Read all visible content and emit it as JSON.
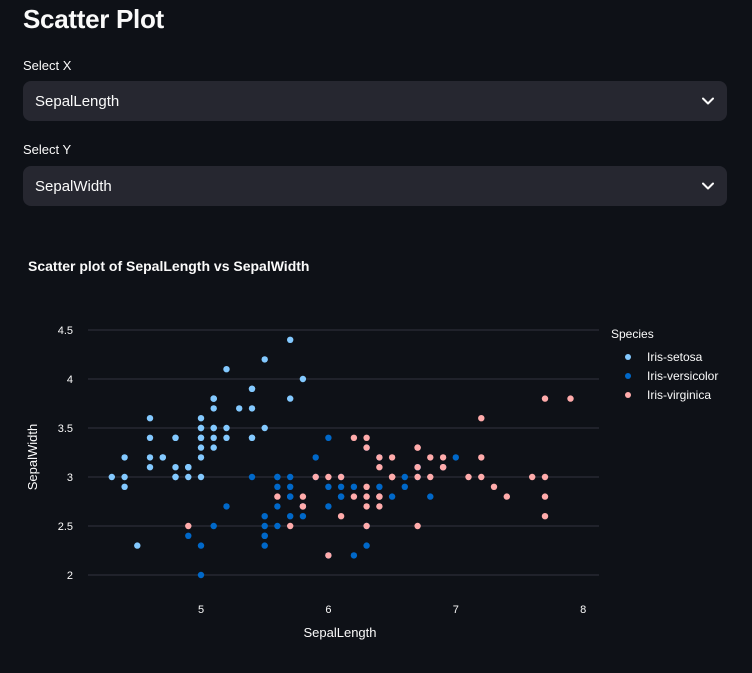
{
  "page": {
    "title": "Scatter Plot"
  },
  "select_x": {
    "label": "Select X",
    "value": "SepalLength"
  },
  "select_y": {
    "label": "Select Y",
    "value": "SepalWidth"
  },
  "icons": {
    "dropdown": "chevron-down-icon"
  },
  "colors": {
    "setosa": "#83c9ff",
    "versicolor": "#0068c9",
    "virginica": "#ffabab",
    "background": "#0e1117"
  },
  "chart_data": {
    "type": "scatter",
    "title": "Scatter plot of SepalLength vs  SepalWidth",
    "xlabel": "SepalLength",
    "ylabel": "SepalWidth",
    "xlim": [
      4.0,
      8.1
    ],
    "ylim": [
      1.8,
      4.6
    ],
    "xticks": [
      "5",
      "6",
      "7",
      "8"
    ],
    "yticks": [
      "2",
      "2.5",
      "3",
      "3.5",
      "4",
      "4.5"
    ],
    "grid": true,
    "legend": {
      "title": "Species",
      "placement": "right"
    },
    "series": [
      {
        "name": "Iris-setosa",
        "color": "#83c9ff",
        "points": [
          [
            5.1,
            3.5
          ],
          [
            4.9,
            3.0
          ],
          [
            4.7,
            3.2
          ],
          [
            4.6,
            3.1
          ],
          [
            5.0,
            3.6
          ],
          [
            5.4,
            3.9
          ],
          [
            4.6,
            3.4
          ],
          [
            5.0,
            3.4
          ],
          [
            4.4,
            2.9
          ],
          [
            4.9,
            3.1
          ],
          [
            5.4,
            3.7
          ],
          [
            4.8,
            3.4
          ],
          [
            4.8,
            3.0
          ],
          [
            4.3,
            3.0
          ],
          [
            5.8,
            4.0
          ],
          [
            5.7,
            4.4
          ],
          [
            5.4,
            3.9
          ],
          [
            5.1,
            3.5
          ],
          [
            5.7,
            3.8
          ],
          [
            5.1,
            3.8
          ],
          [
            5.4,
            3.4
          ],
          [
            5.1,
            3.7
          ],
          [
            4.6,
            3.6
          ],
          [
            5.1,
            3.3
          ],
          [
            4.8,
            3.4
          ],
          [
            5.0,
            3.0
          ],
          [
            5.0,
            3.4
          ],
          [
            5.2,
            3.5
          ],
          [
            5.2,
            3.4
          ],
          [
            4.7,
            3.2
          ],
          [
            4.8,
            3.1
          ],
          [
            5.4,
            3.4
          ],
          [
            5.2,
            4.1
          ],
          [
            5.5,
            4.2
          ],
          [
            4.9,
            3.1
          ],
          [
            5.0,
            3.2
          ],
          [
            5.5,
            3.5
          ],
          [
            4.9,
            3.1
          ],
          [
            4.4,
            3.0
          ],
          [
            5.1,
            3.4
          ],
          [
            5.0,
            3.5
          ],
          [
            4.5,
            2.3
          ],
          [
            4.4,
            3.2
          ],
          [
            5.0,
            3.5
          ],
          [
            5.1,
            3.8
          ],
          [
            4.8,
            3.0
          ],
          [
            5.1,
            3.8
          ],
          [
            4.6,
            3.2
          ],
          [
            5.3,
            3.7
          ],
          [
            5.0,
            3.3
          ]
        ]
      },
      {
        "name": "Iris-versicolor",
        "color": "#0068c9",
        "points": [
          [
            7.0,
            3.2
          ],
          [
            6.4,
            3.2
          ],
          [
            6.9,
            3.1
          ],
          [
            5.5,
            2.3
          ],
          [
            6.5,
            2.8
          ],
          [
            5.7,
            2.8
          ],
          [
            6.3,
            3.3
          ],
          [
            4.9,
            2.4
          ],
          [
            6.6,
            2.9
          ],
          [
            5.2,
            2.7
          ],
          [
            5.0,
            2.0
          ],
          [
            5.9,
            3.0
          ],
          [
            6.0,
            2.2
          ],
          [
            6.1,
            2.9
          ],
          [
            5.6,
            2.9
          ],
          [
            6.7,
            3.1
          ],
          [
            5.6,
            3.0
          ],
          [
            5.8,
            2.7
          ],
          [
            6.2,
            2.2
          ],
          [
            5.6,
            2.5
          ],
          [
            5.9,
            3.2
          ],
          [
            6.1,
            2.8
          ],
          [
            6.3,
            2.5
          ],
          [
            6.1,
            2.8
          ],
          [
            6.4,
            2.9
          ],
          [
            6.6,
            3.0
          ],
          [
            6.8,
            2.8
          ],
          [
            6.7,
            3.0
          ],
          [
            6.0,
            2.9
          ],
          [
            5.7,
            2.6
          ],
          [
            5.5,
            2.4
          ],
          [
            5.5,
            2.4
          ],
          [
            5.8,
            2.7
          ],
          [
            6.0,
            2.7
          ],
          [
            5.4,
            3.0
          ],
          [
            6.0,
            3.4
          ],
          [
            6.7,
            3.1
          ],
          [
            6.3,
            2.3
          ],
          [
            5.6,
            3.0
          ],
          [
            5.5,
            2.5
          ],
          [
            5.5,
            2.6
          ],
          [
            6.1,
            3.0
          ],
          [
            5.8,
            2.6
          ],
          [
            5.0,
            2.3
          ],
          [
            5.6,
            2.7
          ],
          [
            5.7,
            3.0
          ],
          [
            5.7,
            2.9
          ],
          [
            6.2,
            2.9
          ],
          [
            5.1,
            2.5
          ],
          [
            5.7,
            2.8
          ]
        ]
      },
      {
        "name": "Iris-virginica",
        "color": "#ffabab",
        "points": [
          [
            6.3,
            3.3
          ],
          [
            5.8,
            2.7
          ],
          [
            7.1,
            3.0
          ],
          [
            6.3,
            2.9
          ],
          [
            6.5,
            3.0
          ],
          [
            7.6,
            3.0
          ],
          [
            4.9,
            2.5
          ],
          [
            7.3,
            2.9
          ],
          [
            6.7,
            2.5
          ],
          [
            7.2,
            3.6
          ],
          [
            6.5,
            3.2
          ],
          [
            6.4,
            2.7
          ],
          [
            6.8,
            3.0
          ],
          [
            5.7,
            2.5
          ],
          [
            5.8,
            2.8
          ],
          [
            6.4,
            3.2
          ],
          [
            6.5,
            3.0
          ],
          [
            7.7,
            3.8
          ],
          [
            7.7,
            2.6
          ],
          [
            6.0,
            2.2
          ],
          [
            6.9,
            3.2
          ],
          [
            5.6,
            2.8
          ],
          [
            7.7,
            2.8
          ],
          [
            6.3,
            2.7
          ],
          [
            6.7,
            3.3
          ],
          [
            7.2,
            3.2
          ],
          [
            6.2,
            2.8
          ],
          [
            6.1,
            3.0
          ],
          [
            6.4,
            2.8
          ],
          [
            7.2,
            3.0
          ],
          [
            7.4,
            2.8
          ],
          [
            7.9,
            3.8
          ],
          [
            6.4,
            2.8
          ],
          [
            6.3,
            2.8
          ],
          [
            6.1,
            2.6
          ],
          [
            7.7,
            3.0
          ],
          [
            6.3,
            3.4
          ],
          [
            6.4,
            3.1
          ],
          [
            6.0,
            3.0
          ],
          [
            6.9,
            3.1
          ],
          [
            6.7,
            3.1
          ],
          [
            6.9,
            3.1
          ],
          [
            5.8,
            2.7
          ],
          [
            6.8,
            3.2
          ],
          [
            6.7,
            3.3
          ],
          [
            6.7,
            3.0
          ],
          [
            6.3,
            2.5
          ],
          [
            6.5,
            3.0
          ],
          [
            6.2,
            3.4
          ],
          [
            5.9,
            3.0
          ]
        ]
      }
    ]
  }
}
